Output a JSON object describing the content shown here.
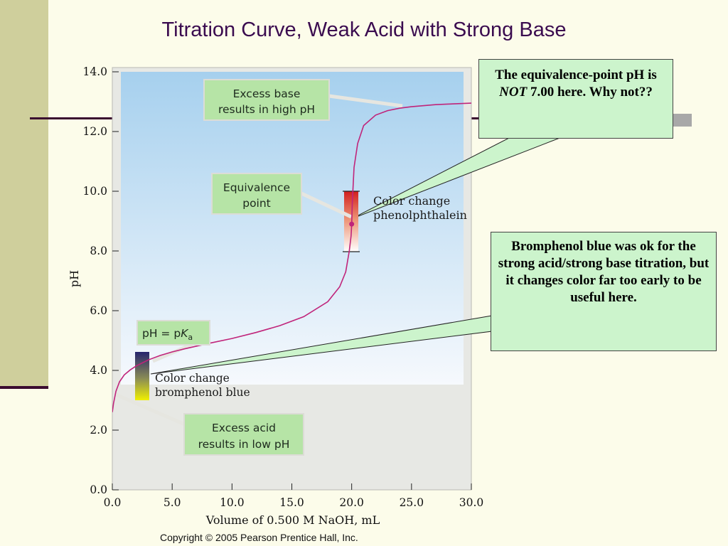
{
  "slide": {
    "title": "Titration Curve, Weak Acid with Strong Base",
    "copyright": "Copyright © 2005 Pearson Prentice Hall, Inc."
  },
  "callouts": {
    "top": {
      "pre": "The equivalence-point pH is ",
      "emph": "NOT",
      "post": " 7.00 here. Why not??"
    },
    "bottom": "Bromphenol blue was ok for the strong acid/strong base titration, but it changes color far too early to be useful here."
  },
  "chart_data": {
    "type": "line",
    "xlabel": "Volume of 0.500 M NaOH, mL",
    "ylabel": "pH",
    "xlim": [
      0,
      30
    ],
    "ylim": [
      0,
      14
    ],
    "x_ticks": [
      "0.0",
      "5.0",
      "10.0",
      "15.0",
      "20.0",
      "25.0",
      "30.0"
    ],
    "y_ticks": [
      "0.0",
      "2.0",
      "4.0",
      "6.0",
      "8.0",
      "10.0",
      "12.0",
      "14.0"
    ],
    "series": [
      {
        "color": "#c0247a",
        "x": [
          0.0,
          0.1,
          0.3,
          0.6,
          1.0,
          1.5,
          2.0,
          3.0,
          4.0,
          5.0,
          6.0,
          8.0,
          10.0,
          12.0,
          14.0,
          16.0,
          18.0,
          19.0,
          19.5,
          19.8,
          19.95,
          20.0,
          20.05,
          20.2,
          20.5,
          21.0,
          22.0,
          23.0,
          24.0,
          25.0,
          27.0,
          28.0,
          30.0
        ],
        "y": [
          2.6,
          2.9,
          3.3,
          3.62,
          3.85,
          4.02,
          4.15,
          4.35,
          4.5,
          4.62,
          4.72,
          4.9,
          5.07,
          5.27,
          5.5,
          5.8,
          6.3,
          6.8,
          7.3,
          8.0,
          8.5,
          8.9,
          9.6,
          10.8,
          11.6,
          12.2,
          12.55,
          12.7,
          12.78,
          12.83,
          12.9,
          12.92,
          12.95
        ]
      }
    ],
    "points": [
      {
        "label": "Equivalence point",
        "x": 20.0,
        "y": 8.9,
        "color": "#c0247a"
      }
    ],
    "annotations": {
      "excess_base": "Excess base results in high pH",
      "equivalence": "Equivalence point",
      "pka_prefix": "pH = p",
      "pka_italic": "K",
      "pka_sub": "a",
      "excess_acid": "Excess acid results in low pH",
      "phenolphthalein": [
        "Color change",
        "phenolphthalein"
      ],
      "bromphenol": [
        "Color change",
        "bromphenol blue"
      ]
    },
    "indicator_ranges": [
      {
        "name": "phenolphthalein",
        "y_low": 8.0,
        "y_high": 10.0,
        "x": 20.0,
        "color_low": "#ffffff",
        "color_high": "#d1201f"
      },
      {
        "name": "bromphenol blue",
        "y_low": 3.0,
        "y_high": 4.6,
        "x": 2.6,
        "color_low": "#f0f000",
        "color_high": "#26256e"
      }
    ],
    "grid": false,
    "legend": "none"
  }
}
